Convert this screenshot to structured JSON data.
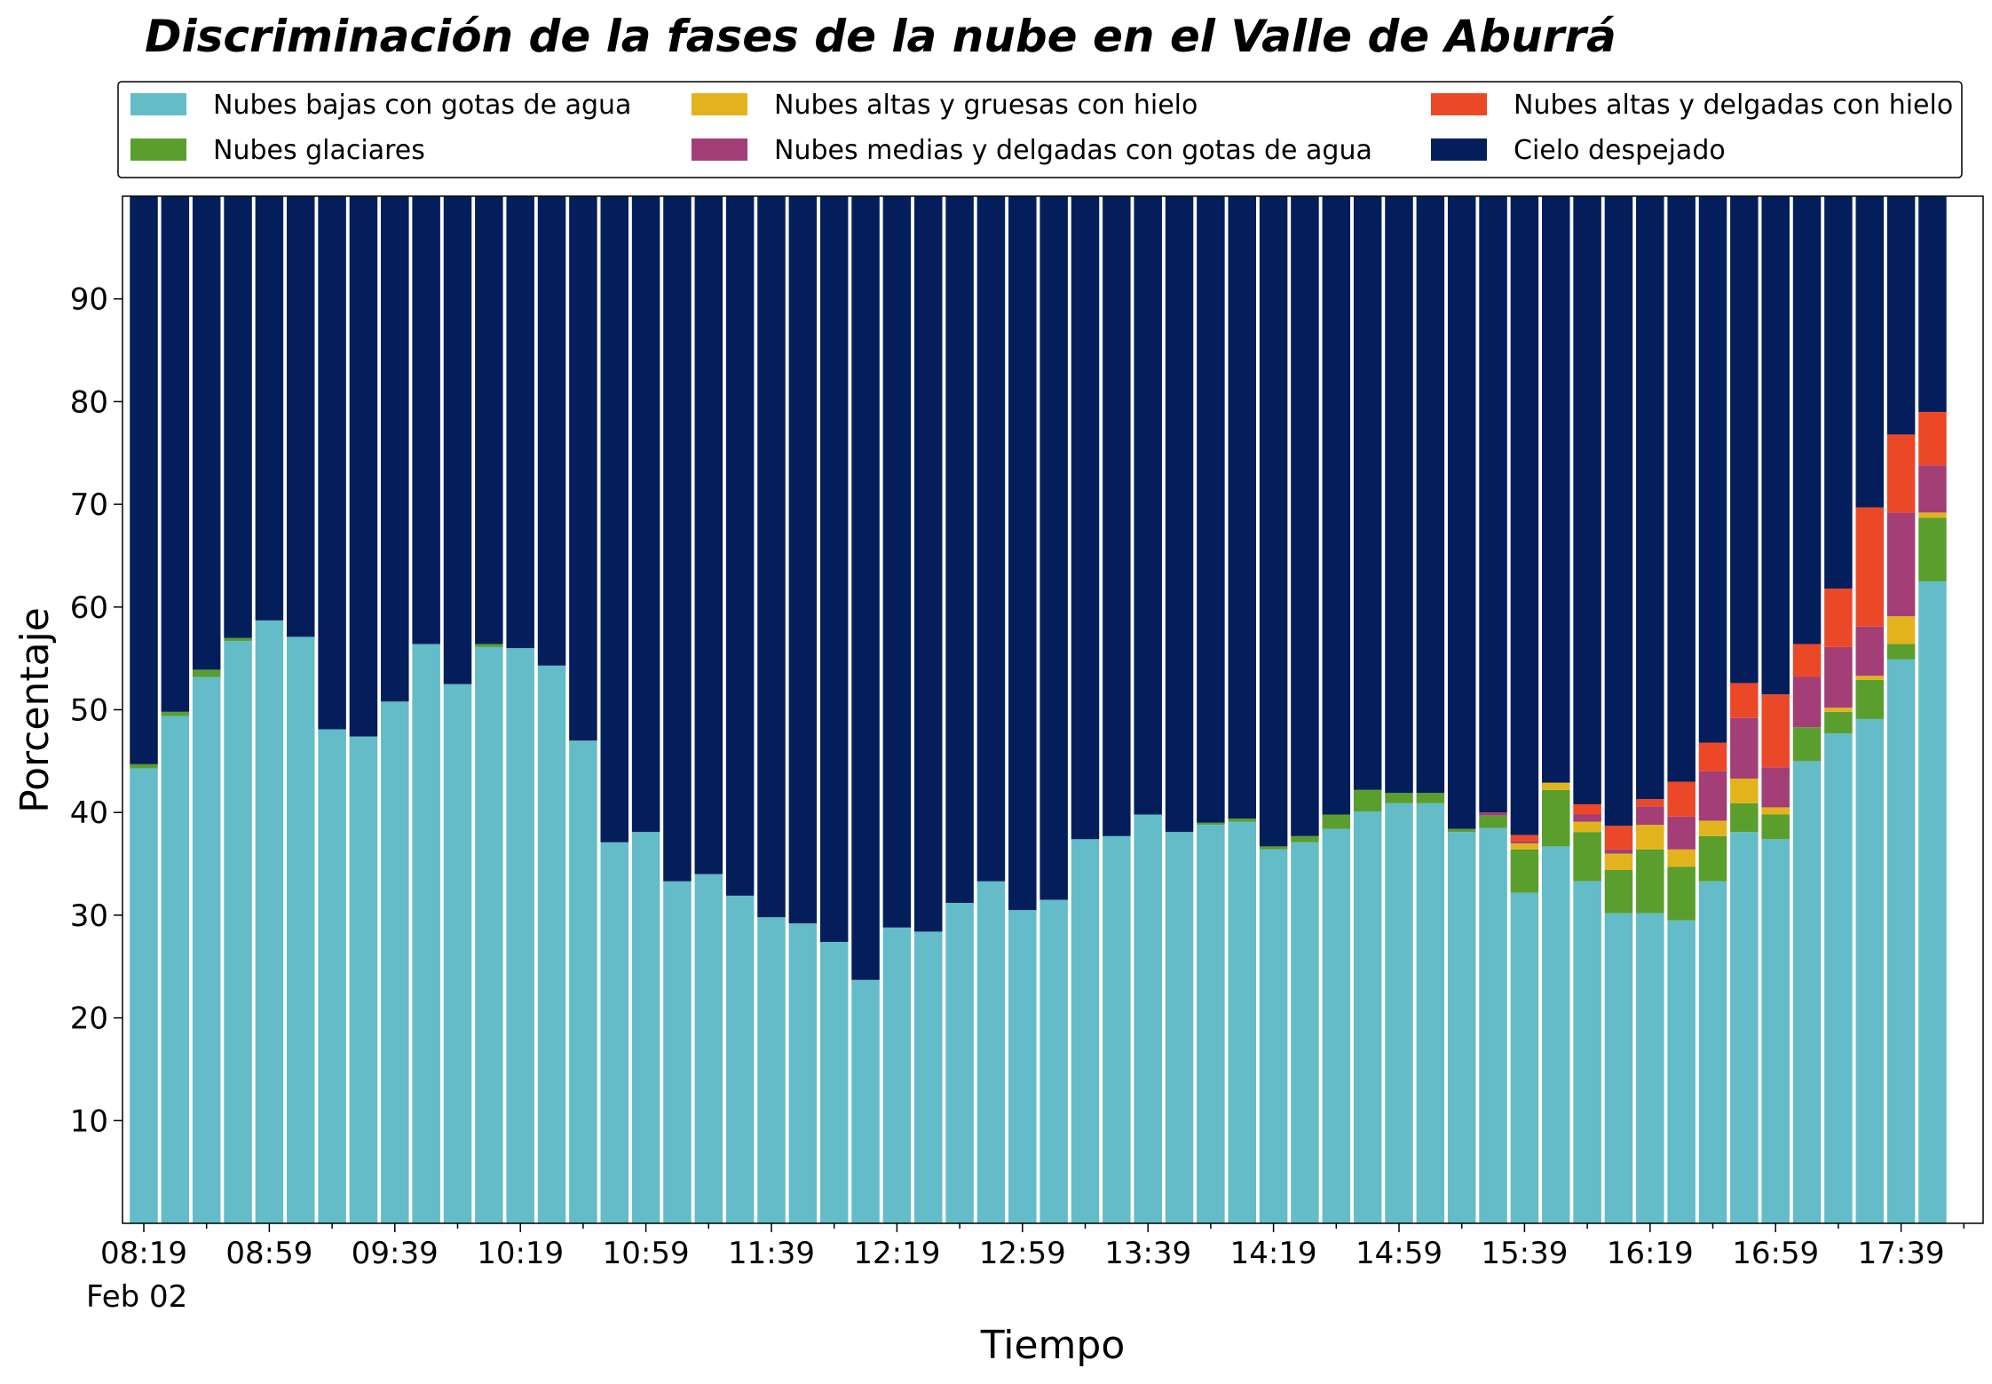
{
  "chart_data": {
    "type": "bar",
    "stacked": true,
    "title": "Discriminación de la fases de la nube en el Valle de Aburrá",
    "xlabel": "Tiempo",
    "ylabel": "Porcentaje",
    "ylim": [
      0,
      100
    ],
    "yticks": [
      10,
      20,
      30,
      40,
      50,
      60,
      70,
      80,
      90
    ],
    "x_date_label": "Feb 02",
    "xtick_labels": [
      "08:19",
      "08:59",
      "09:39",
      "10:19",
      "10:59",
      "11:39",
      "12:19",
      "12:59",
      "13:39",
      "14:19",
      "14:59",
      "15:39",
      "16:19",
      "16:59",
      "17:39"
    ],
    "legend_position": "top",
    "grid": false,
    "series": [
      {
        "name": "Nubes bajas con gotas de agua",
        "color": "#63bcc8",
        "values": [
          44.3,
          49.4,
          53.2,
          56.7,
          58.7,
          57.1,
          48.1,
          47.4,
          50.8,
          56.4,
          52.5,
          56.1,
          56.0,
          54.3,
          47.0,
          37.1,
          38.1,
          33.3,
          34.0,
          31.9,
          29.8,
          29.2,
          27.4,
          23.7,
          28.8,
          28.4,
          31.2,
          33.3,
          30.5,
          31.5,
          37.4,
          37.7,
          39.8,
          38.1,
          38.8,
          39.1,
          36.4,
          37.1,
          38.4,
          40.1,
          40.9,
          40.9,
          38.1,
          38.5,
          32.2,
          36.7,
          33.3,
          30.2,
          30.2,
          29.5,
          33.3,
          38.1,
          37.4,
          45.0,
          47.7,
          49.1,
          54.9,
          62.5
        ]
      },
      {
        "name": "Nubes glaciares",
        "color": "#5a9e2d",
        "values": [
          0.4,
          0.4,
          0.7,
          0.3,
          0,
          0,
          0,
          0,
          0,
          0,
          0,
          0.3,
          0,
          0,
          0,
          0,
          0,
          0,
          0,
          0,
          0,
          0,
          0,
          0,
          0,
          0,
          0,
          0,
          0,
          0,
          0,
          0,
          0,
          0,
          0.2,
          0.3,
          0.3,
          0.6,
          1.4,
          2.1,
          1.0,
          1.0,
          0.3,
          1.2,
          4.2,
          5.5,
          4.8,
          4.2,
          6.2,
          5.2,
          4.4,
          2.8,
          2.4,
          3.3,
          2.1,
          3.8,
          1.5,
          6.2
        ]
      },
      {
        "name": "Nubes altas y gruesas con hielo",
        "color": "#e3b31d",
        "values": [
          0,
          0,
          0,
          0,
          0,
          0,
          0,
          0,
          0,
          0,
          0,
          0,
          0,
          0,
          0,
          0,
          0,
          0,
          0,
          0,
          0,
          0,
          0,
          0,
          0,
          0,
          0,
          0,
          0,
          0,
          0,
          0,
          0,
          0,
          0,
          0,
          0,
          0,
          0,
          0,
          0,
          0,
          0,
          0,
          0.6,
          0.7,
          1.0,
          1.6,
          2.4,
          1.7,
          1.5,
          2.4,
          0.7,
          0,
          0.4,
          0.4,
          2.7,
          0.5
        ]
      },
      {
        "name": "Nubes medias y delgadas con gotas de agua",
        "color": "#a33e76",
        "values": [
          0,
          0,
          0,
          0,
          0,
          0,
          0,
          0,
          0,
          0,
          0,
          0,
          0,
          0,
          0,
          0,
          0,
          0,
          0,
          0,
          0,
          0,
          0,
          0,
          0,
          0,
          0,
          0,
          0,
          0,
          0,
          0,
          0,
          0,
          0,
          0,
          0,
          0,
          0,
          0,
          0,
          0,
          0,
          0.3,
          0.2,
          0,
          0.7,
          0.4,
          1.8,
          3.2,
          4.8,
          5.9,
          3.9,
          4.9,
          5.9,
          4.8,
          10.1,
          4.6
        ]
      },
      {
        "name": "Nubes altas y delgadas con hielo",
        "color": "#eb4828",
        "values": [
          0,
          0,
          0,
          0,
          0,
          0,
          0,
          0,
          0,
          0,
          0,
          0,
          0,
          0,
          0,
          0,
          0,
          0,
          0,
          0,
          0,
          0,
          0,
          0,
          0,
          0,
          0,
          0,
          0,
          0,
          0,
          0,
          0,
          0,
          0,
          0,
          0,
          0,
          0,
          0,
          0,
          0,
          0,
          0,
          0.6,
          0,
          1.0,
          2.3,
          0.7,
          3.4,
          2.8,
          3.4,
          7.1,
          3.2,
          5.7,
          11.6,
          7.6,
          5.2
        ]
      },
      {
        "name": "Cielo despejado",
        "color": "#041e5c",
        "values": [
          55.3,
          50.2,
          46.1,
          43.0,
          41.3,
          42.9,
          51.9,
          52.6,
          49.2,
          43.6,
          47.5,
          43.6,
          44.0,
          45.7,
          53.0,
          62.9,
          61.9,
          66.7,
          66.0,
          68.1,
          70.2,
          70.8,
          72.6,
          76.3,
          71.2,
          71.6,
          68.8,
          66.7,
          69.5,
          68.5,
          62.6,
          62.3,
          60.2,
          61.9,
          61.0,
          60.6,
          63.3,
          62.3,
          60.2,
          57.8,
          58.1,
          58.1,
          61.6,
          60.0,
          62.2,
          57.1,
          59.2,
          61.3,
          58.7,
          57.0,
          53.2,
          47.4,
          48.5,
          43.6,
          38.2,
          30.3,
          23.2,
          21.0
        ]
      }
    ]
  }
}
